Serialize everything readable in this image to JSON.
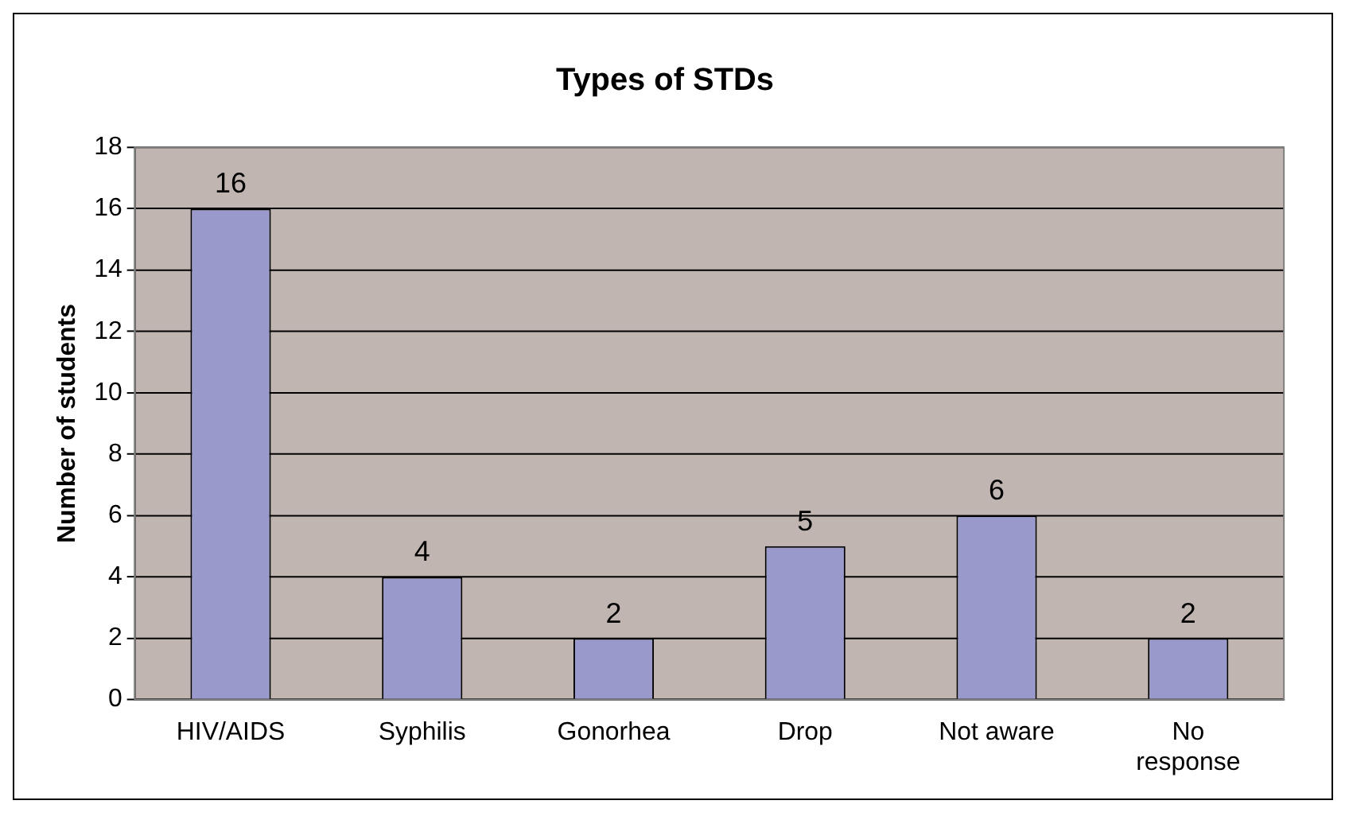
{
  "chart_data": {
    "type": "bar",
    "title": "Types of STDs",
    "ylabel": "Number of students",
    "categories": [
      "HIV/AIDS",
      "Syphilis",
      "Gonorhea",
      "Drop",
      "Not aware",
      "No response"
    ],
    "values": [
      16,
      4,
      2,
      5,
      6,
      2
    ],
    "color": "#9999cc",
    "ylim": [
      0,
      18
    ],
    "yticks": [
      0,
      2,
      4,
      6,
      8,
      10,
      12,
      14,
      16,
      18
    ],
    "grid": "y",
    "data_labels": true
  }
}
